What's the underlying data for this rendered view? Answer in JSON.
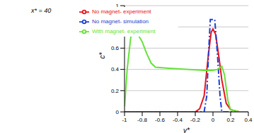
{
  "chart_data": {
    "type": "line",
    "annotation": "x* = 40",
    "x_label": "y*",
    "y_label": "c*",
    "xlim": [
      -1,
      0.4
    ],
    "xticks": [
      -1,
      -0.8,
      -0.6,
      -0.4,
      -0.2,
      0,
      0.2,
      0.4
    ],
    "ylim": [
      0,
      1
    ],
    "yticks": [
      0,
      0.2,
      0.4,
      0.6,
      0.8,
      1
    ],
    "grid": true,
    "legend": "top",
    "series": [
      {
        "name": "No magnet- experiment",
        "color": "#e8131b",
        "line_style": "solid",
        "marker": "none",
        "x": [
          -1,
          -0.6,
          -0.2,
          -0.15,
          -0.1,
          -0.05,
          -0.02,
          0,
          0.03,
          0.07,
          0.1,
          0.15,
          0.2,
          0.3,
          0.4
        ],
        "values": [
          0,
          0,
          0,
          0.03,
          0.15,
          0.55,
          0.75,
          0.78,
          0.73,
          0.5,
          0.3,
          0.08,
          0.02,
          0,
          0
        ]
      },
      {
        "name": "No magnet- simulation",
        "color": "#1f3fd1",
        "line_style": "dashdot",
        "marker": "none",
        "x": [
          -1,
          -0.5,
          -0.1,
          -0.07,
          -0.05,
          -0.03,
          0.02,
          0.05,
          0.08,
          0.1,
          0.4
        ],
        "values": [
          0,
          0,
          0,
          0.15,
          0.55,
          0.87,
          0.87,
          0.55,
          0.15,
          0,
          0
        ]
      },
      {
        "name": "With magnet- experiment",
        "color": "#66e23a",
        "line_style": "solid",
        "marker": "none",
        "x": [
          -1,
          -0.97,
          -0.93,
          -0.9,
          -0.85,
          -0.8,
          -0.75,
          -0.7,
          -0.65,
          -0.5,
          -0.3,
          -0.1,
          0,
          0.05,
          0.1,
          0.13,
          0.17,
          0.2,
          0.3,
          0.4
        ],
        "values": [
          0.05,
          0.4,
          0.7,
          0.75,
          0.73,
          0.66,
          0.55,
          0.46,
          0.42,
          0.41,
          0.4,
          0.39,
          0.39,
          0.4,
          0.43,
          0.35,
          0.1,
          0.02,
          0,
          0
        ]
      }
    ]
  }
}
